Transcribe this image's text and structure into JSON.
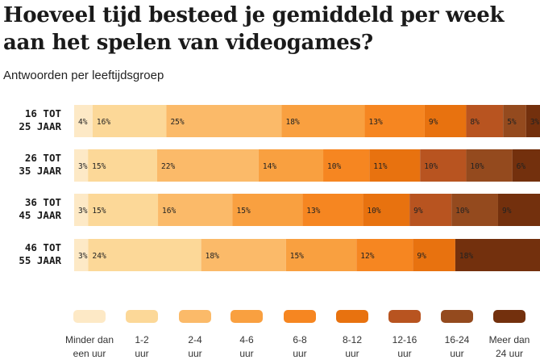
{
  "title": "Hoeveel tijd besteed je gemiddeld per week aan het spelen van videogames?",
  "subtitle": "Antwoorden per leeftijdsgroep",
  "colors": [
    "#fde9c6",
    "#fcd898",
    "#fbba69",
    "#f9a040",
    "#f68621",
    "#e8720f",
    "#b85420",
    "#944a1e",
    "#73300d"
  ],
  "chart_data": {
    "type": "bar",
    "stacked": true,
    "orientation": "horizontal",
    "normalized": true,
    "title": "Hoeveel tijd besteed je gemiddeld per week aan het spelen van videogames?",
    "subtitle": "Antwoorden per leeftijdsgroep",
    "categories": [
      [
        "16 TOT",
        "25 JAAR"
      ],
      [
        "26 TOT",
        "35 JAAR"
      ],
      [
        "36 TOT",
        "45 JAAR"
      ],
      [
        "46 TOT",
        "55 JAAR"
      ]
    ],
    "series": [
      {
        "name": [
          "Minder dan",
          "een uur"
        ],
        "values": [
          4,
          3,
          3,
          3
        ]
      },
      {
        "name": [
          "1-2",
          "uur"
        ],
        "values": [
          16,
          15,
          15,
          24
        ]
      },
      {
        "name": [
          "2-4",
          "uur"
        ],
        "values": [
          25,
          22,
          16,
          18
        ]
      },
      {
        "name": [
          "4-6",
          "uur"
        ],
        "values": [
          18,
          14,
          15,
          15
        ]
      },
      {
        "name": [
          "6-8",
          "uur"
        ],
        "values": [
          13,
          10,
          13,
          12
        ]
      },
      {
        "name": [
          "8-12",
          "uur"
        ],
        "values": [
          9,
          11,
          10,
          9
        ]
      },
      {
        "name": [
          "12-16",
          "uur"
        ],
        "values": [
          8,
          10,
          9,
          0
        ]
      },
      {
        "name": [
          "16-24",
          "uur"
        ],
        "values": [
          5,
          10,
          10,
          0
        ]
      },
      {
        "name": [
          "Meer dan",
          "24 uur"
        ],
        "values": [
          3,
          6,
          9,
          18
        ]
      }
    ],
    "legend": "bottom",
    "unit": "%"
  }
}
